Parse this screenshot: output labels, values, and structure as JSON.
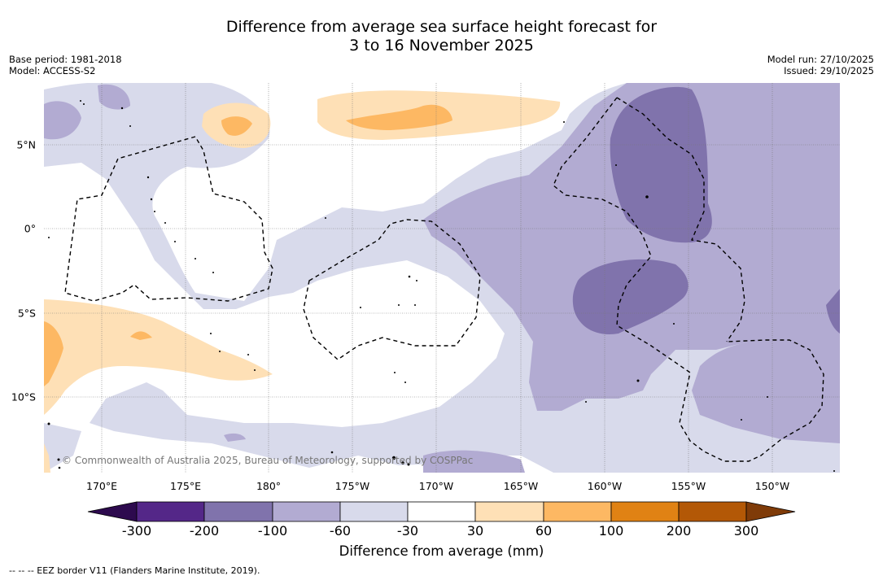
{
  "header": {
    "title_line1": "Difference from average sea surface height forecast for",
    "title_line2": "3 to 16 November 2025",
    "base_period": "Base period: 1981-2018",
    "model": "Model: ACCESS-S2",
    "model_run": "Model run: 27/10/2025",
    "issued": "Issued: 29/10/2025"
  },
  "map": {
    "lon_labels": [
      "170°E",
      "175°E",
      "180°",
      "175°W",
      "170°W",
      "165°W",
      "160°W",
      "155°W",
      "150°W"
    ],
    "lat_labels": [
      "5°N",
      "0°",
      "5°S",
      "10°S"
    ],
    "copyright": "© Commonwealth of Australia 2025, Bureau of Meteorology, supported by COSPPac"
  },
  "colorbar": {
    "ticks": [
      "-300",
      "-200",
      "-100",
      "-60",
      "-30",
      "30",
      "60",
      "100",
      "200",
      "300"
    ],
    "label": "Difference from average (mm)",
    "colors": [
      "#2d0a4e",
      "#542788",
      "#8073ac",
      "#b2abd2",
      "#d8daeb",
      "#ffffff",
      "#fee0b6",
      "#fdb863",
      "#e08214",
      "#b35806",
      "#7f3b08"
    ]
  },
  "footer": {
    "eez_note": "--  --  -- EEZ border V11 (Flanders Marine Institute, 2019)."
  }
}
